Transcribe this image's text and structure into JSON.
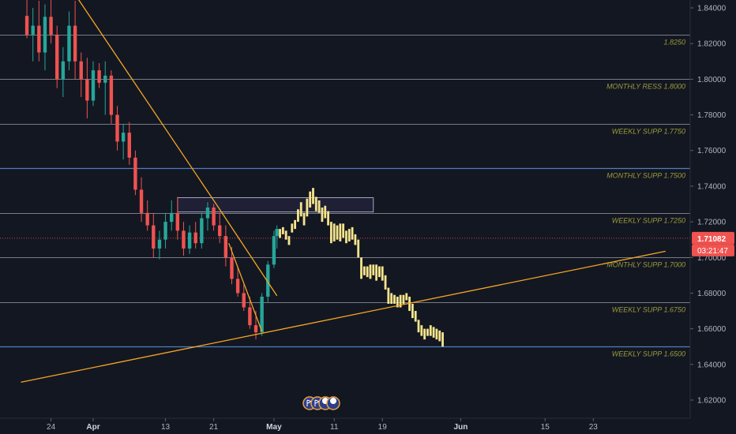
{
  "chart_data": {
    "type": "candlestick",
    "instrument_scale": "price",
    "y_range": [
      1.607,
      1.845
    ],
    "y_ticks": [
      "1.84000",
      "1.82000",
      "1.80000",
      "1.78000",
      "1.76000",
      "1.74000",
      "1.72000",
      "1.70000",
      "1.68000",
      "1.66000",
      "1.64000",
      "1.62000"
    ],
    "x_ticks": [
      {
        "label": "24",
        "day": -7,
        "bold": false
      },
      {
        "label": "Apr",
        "day": 0,
        "bold": true
      },
      {
        "label": "13",
        "day": 12,
        "bold": false
      },
      {
        "label": "21",
        "day": 20,
        "bold": false
      },
      {
        "label": "May",
        "day": 30,
        "bold": true
      },
      {
        "label": "11",
        "day": 40,
        "bold": false
      },
      {
        "label": "19",
        "day": 48,
        "bold": false
      },
      {
        "label": "Jun",
        "day": 61,
        "bold": true
      },
      {
        "label": "15",
        "day": 75,
        "bold": false
      },
      {
        "label": "23",
        "day": 83,
        "bold": false
      }
    ],
    "levels": [
      {
        "label": "1.8250",
        "value": 1.825,
        "color": "#b2b5be"
      },
      {
        "label": "MONTHLY RESS 1.8000",
        "value": 1.8,
        "color": "#b2b5be"
      },
      {
        "label": "WEEKLY SUPP 1.7750",
        "value": 1.775,
        "color": "#b2b5be"
      },
      {
        "label": "MONTHLY SUPP 1.7500",
        "value": 1.75,
        "color": "#5b8fd6"
      },
      {
        "label": "WEEKLY SUPP 1.7250",
        "value": 1.725,
        "color": "#b2b5be"
      },
      {
        "label": "MONTHLY SUPP 1.7000",
        "value": 1.7,
        "color": "#b2b5be"
      },
      {
        "label": "WEEKLY SUPP 1.6750",
        "value": 1.675,
        "color": "#b2b5be"
      },
      {
        "label": "WEEKLY SUPP 1.6500",
        "value": 1.65,
        "color": "#5b8fd6"
      }
    ],
    "current_price": {
      "value": 1.71082,
      "label": "1.71082",
      "countdown": "03:21:47",
      "color": "#ef5350"
    },
    "zone": {
      "day_from": 14,
      "day_to": 46.5,
      "price_low": 1.7255,
      "price_high": 1.7335
    },
    "trendlines": [
      {
        "from": {
          "day": -2.5,
          "price": 1.845
        },
        "to": {
          "day": 20.5,
          "price": 1.7295
        },
        "color": "#f5a623"
      },
      {
        "from": {
          "day": 20.5,
          "price": 1.7295
        },
        "to": {
          "day": 30.5,
          "price": 1.6785
        },
        "color": "#f5a623"
      },
      {
        "from": {
          "day": 22.5,
          "price": 1.708
        },
        "to": {
          "day": 28,
          "price": 1.6585
        },
        "color": "#f5a623"
      },
      {
        "from": {
          "day": -12,
          "price": 1.63
        },
        "to": {
          "day": 95,
          "price": 1.7035
        },
        "color": "#f5a623"
      }
    ],
    "actual_candles": [
      [
        -11,
        1.8355,
        1.845,
        1.823,
        1.825
      ],
      [
        -10,
        1.825,
        1.84,
        1.81,
        1.83
      ],
      [
        -9,
        1.83,
        1.844,
        1.81,
        1.815
      ],
      [
        -8,
        1.815,
        1.842,
        1.805,
        1.835
      ],
      [
        -7,
        1.835,
        1.845,
        1.82,
        1.825
      ],
      [
        -6,
        1.825,
        1.83,
        1.795,
        1.8
      ],
      [
        -5,
        1.8,
        1.818,
        1.79,
        1.81
      ],
      [
        -4,
        1.81,
        1.838,
        1.805,
        1.83
      ],
      [
        -3,
        1.83,
        1.844,
        1.8,
        1.81
      ],
      [
        -2,
        1.81,
        1.815,
        1.79,
        1.8
      ],
      [
        -1,
        1.8,
        1.812,
        1.778,
        1.788
      ],
      [
        0,
        1.788,
        1.81,
        1.785,
        1.805
      ],
      [
        1,
        1.805,
        1.809,
        1.795,
        1.798
      ],
      [
        2,
        1.798,
        1.81,
        1.78,
        1.802
      ],
      [
        3,
        1.802,
        1.805,
        1.775,
        1.78
      ],
      [
        4,
        1.78,
        1.785,
        1.76,
        1.765
      ],
      [
        5,
        1.765,
        1.775,
        1.755,
        1.77
      ],
      [
        6,
        1.77,
        1.776,
        1.752,
        1.756
      ],
      [
        7,
        1.756,
        1.76,
        1.735,
        1.738
      ],
      [
        8,
        1.738,
        1.745,
        1.72,
        1.725
      ],
      [
        9,
        1.725,
        1.732,
        1.715,
        1.718
      ],
      [
        10,
        1.718,
        1.725,
        1.7,
        1.705
      ],
      [
        11,
        1.705,
        1.715,
        1.699,
        1.71
      ],
      [
        12,
        1.71,
        1.725,
        1.705,
        1.72
      ],
      [
        13,
        1.72,
        1.732,
        1.715,
        1.725
      ],
      [
        14,
        1.725,
        1.734,
        1.71,
        1.715
      ],
      [
        15,
        1.715,
        1.72,
        1.701,
        1.705
      ],
      [
        16,
        1.705,
        1.718,
        1.702,
        1.714
      ],
      [
        17,
        1.714,
        1.72,
        1.705,
        1.708
      ],
      [
        18,
        1.708,
        1.725,
        1.705,
        1.722
      ],
      [
        19,
        1.722,
        1.731,
        1.715,
        1.728
      ],
      [
        20,
        1.728,
        1.73,
        1.715,
        1.718
      ],
      [
        21,
        1.718,
        1.725,
        1.708,
        1.712
      ],
      [
        22,
        1.712,
        1.718,
        1.695,
        1.7
      ],
      [
        23,
        1.7,
        1.706,
        1.685,
        1.688
      ],
      [
        24,
        1.688,
        1.695,
        1.678,
        1.68
      ],
      [
        25,
        1.68,
        1.685,
        1.67,
        1.672
      ],
      [
        26,
        1.672,
        1.678,
        1.66,
        1.662
      ],
      [
        27,
        1.662,
        1.67,
        1.654,
        1.658
      ],
      [
        28,
        1.658,
        1.68,
        1.656,
        1.678
      ],
      [
        29,
        1.678,
        1.698,
        1.675,
        1.696
      ],
      [
        30,
        1.696,
        1.715,
        1.694,
        1.712
      ],
      [
        30.5,
        1.712,
        1.718,
        1.705,
        1.716
      ]
    ],
    "projection_bars": [
      [
        31,
        1.711,
        1.716
      ],
      [
        31.5,
        1.713,
        1.717
      ],
      [
        32,
        1.71,
        1.715
      ],
      [
        32.5,
        1.707,
        1.712
      ],
      [
        33,
        1.714,
        1.719
      ],
      [
        33.5,
        1.716,
        1.721
      ],
      [
        34,
        1.72,
        1.727
      ],
      [
        34.5,
        1.723,
        1.731
      ],
      [
        35,
        1.718,
        1.725
      ],
      [
        35.5,
        1.723,
        1.733
      ],
      [
        36,
        1.728,
        1.737
      ],
      [
        36.5,
        1.73,
        1.739
      ],
      [
        37,
        1.726,
        1.734
      ],
      [
        37.5,
        1.725,
        1.732
      ],
      [
        38,
        1.72,
        1.728
      ],
      [
        38.5,
        1.722,
        1.729
      ],
      [
        39,
        1.718,
        1.726
      ],
      [
        39.5,
        1.708,
        1.72
      ],
      [
        40,
        1.709,
        1.719
      ],
      [
        40.5,
        1.71,
        1.718
      ],
      [
        41,
        1.709,
        1.719
      ],
      [
        41.5,
        1.711,
        1.719
      ],
      [
        42,
        1.708,
        1.715
      ],
      [
        42.5,
        1.709,
        1.716
      ],
      [
        43,
        1.71,
        1.717
      ],
      [
        43.5,
        1.707,
        1.713
      ],
      [
        44,
        1.7,
        1.71
      ],
      [
        44.5,
        1.688,
        1.7
      ],
      [
        45,
        1.69,
        1.695
      ],
      [
        45.5,
        1.689,
        1.695
      ],
      [
        46,
        1.688,
        1.696
      ],
      [
        46.5,
        1.69,
        1.696
      ],
      [
        47,
        1.687,
        1.696
      ],
      [
        47.5,
        1.689,
        1.695
      ],
      [
        48,
        1.687,
        1.695
      ],
      [
        48.5,
        1.682,
        1.69
      ],
      [
        49,
        1.674,
        1.683
      ],
      [
        49.5,
        1.674,
        1.68
      ],
      [
        50,
        1.674,
        1.679
      ],
      [
        50.5,
        1.672,
        1.678
      ],
      [
        51,
        1.672,
        1.679
      ],
      [
        51.5,
        1.674,
        1.679
      ],
      [
        52,
        1.676,
        1.68
      ],
      [
        52.5,
        1.67,
        1.678
      ],
      [
        53,
        1.666,
        1.674
      ],
      [
        53.5,
        1.664,
        1.67
      ],
      [
        54,
        1.658,
        1.665
      ],
      [
        54.5,
        1.656,
        1.662
      ],
      [
        55,
        1.654,
        1.66
      ],
      [
        55.5,
        1.656,
        1.66
      ],
      [
        56,
        1.656,
        1.662
      ],
      [
        56.5,
        1.655,
        1.661
      ],
      [
        57,
        1.654,
        1.66
      ],
      [
        57.5,
        1.653,
        1.659
      ],
      [
        58,
        1.65,
        1.658
      ]
    ]
  },
  "icons": [
    "event-flag-icon",
    "event-flag-icon",
    "event-flag-icon",
    "event-flag-icon"
  ]
}
